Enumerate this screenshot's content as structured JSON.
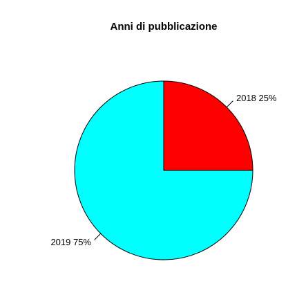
{
  "chart_data": {
    "type": "pie",
    "title": "Anni di pubblicazione",
    "categories": [
      "2018",
      "2019"
    ],
    "values": [
      25,
      75
    ],
    "labels": [
      "2018 25%",
      "2019 75%"
    ],
    "colors": [
      "#ff0000",
      "#00ffff"
    ],
    "start_angle_deg": 90,
    "direction": "clockwise",
    "legend": "none",
    "border_color": "#000000"
  }
}
